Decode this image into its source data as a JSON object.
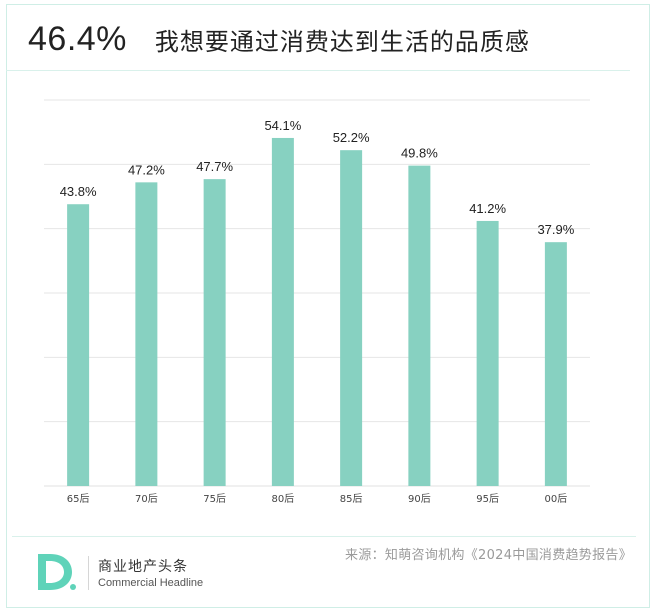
{
  "header": {
    "big_percent": "46.4%",
    "headline": "我想要通过消费达到生活的品质感"
  },
  "chart_data": {
    "type": "bar",
    "categories": [
      "65后",
      "70后",
      "75后",
      "80后",
      "85后",
      "90后",
      "95后",
      "00后"
    ],
    "values": [
      43.8,
      47.2,
      47.7,
      54.1,
      52.2,
      49.8,
      41.2,
      37.9
    ],
    "value_labels": [
      "43.8%",
      "47.2%",
      "47.7%",
      "54.1%",
      "52.2%",
      "49.8%",
      "41.2%",
      "37.9%"
    ],
    "title": "",
    "xlabel": "",
    "ylabel": "",
    "ylim": [
      0,
      60
    ],
    "grid": true,
    "bar_color": "#87d1c1",
    "grid_color": "#e6e6e6"
  },
  "footer": {
    "brand_cn": "商业地产头条",
    "brand_en": "Commercial Headline",
    "source": "来源：知萌咨询机构《2024中国消费趋势报告》",
    "logo_color": "#5fd3b9"
  }
}
